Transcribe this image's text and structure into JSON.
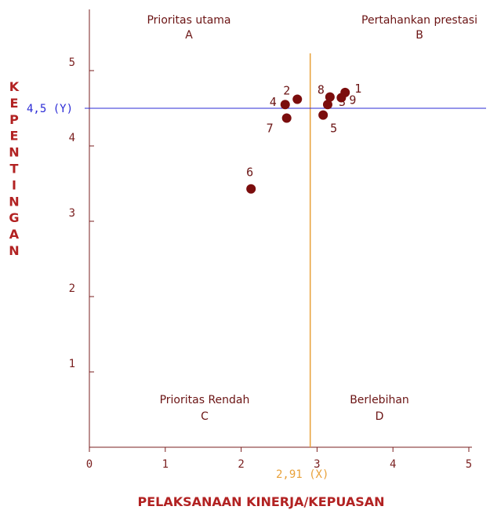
{
  "chart_data": {
    "type": "scatter",
    "xlabel": "PELAKSANAAN KINERJA/KEPUASAN",
    "ylabel": "KEPENTINGAN",
    "xlim": [
      0,
      5
    ],
    "ylim": [
      0,
      5.5
    ],
    "x_ticks": [
      "0",
      "1",
      "2",
      "3",
      "4",
      "5"
    ],
    "y_ticks": [
      "1",
      "2",
      "3",
      "4",
      "5"
    ],
    "points": [
      {
        "label": "1",
        "x": 3.37,
        "y": 4.71
      },
      {
        "label": "2",
        "x": 2.74,
        "y": 4.62
      },
      {
        "label": "3",
        "x": 3.14,
        "y": 4.55
      },
      {
        "label": "4",
        "x": 2.58,
        "y": 4.55
      },
      {
        "label": "5",
        "x": 3.08,
        "y": 4.41
      },
      {
        "label": "6",
        "x": 2.13,
        "y": 3.43
      },
      {
        "label": "7",
        "x": 2.6,
        "y": 4.37
      },
      {
        "label": "8",
        "x": 3.17,
        "y": 4.65
      },
      {
        "label": "9",
        "x": 3.32,
        "y": 4.64
      }
    ],
    "reference_lines": {
      "x": {
        "value": 2.91,
        "label": "2,91 (X)",
        "color": "#e8a13a"
      },
      "y": {
        "value": 4.5,
        "label": "4,5 (Y)",
        "color": "#2b2bd6"
      }
    },
    "quadrants": [
      {
        "name": "Prioritas utama",
        "letter": "A"
      },
      {
        "name": "Pertahankan prestasi",
        "letter": "B"
      },
      {
        "name": "Prioritas Rendah",
        "letter": "C"
      },
      {
        "name": "Berlebihan",
        "letter": "D"
      }
    ],
    "colors": {
      "axis": "#7a1f1f",
      "point": "#7b0d0d",
      "label": "#b22222"
    }
  }
}
